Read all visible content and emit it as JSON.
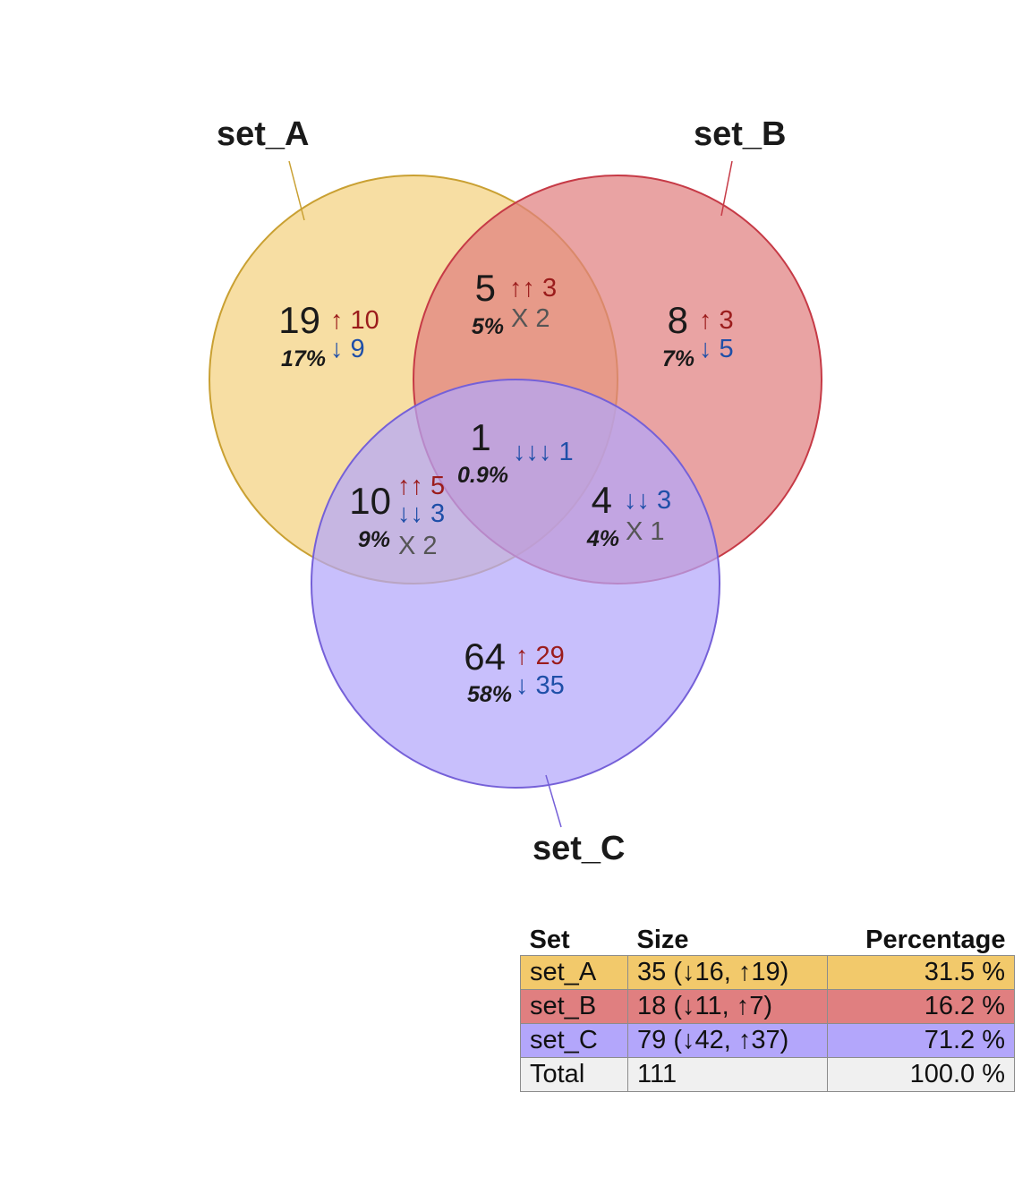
{
  "colors": {
    "set_A": "#f2c96b",
    "set_B": "#e07f80",
    "set_C": "#b3a6fb",
    "total": "#f0f0f0",
    "up": "#9b1c1c",
    "down": "#1f4fa8",
    "mixed": "#555555"
  },
  "sets": [
    {
      "id": "A",
      "name": "set_A",
      "color": "#f2c96b",
      "stroke": "#c9a032"
    },
    {
      "id": "B",
      "name": "set_B",
      "color": "#e07f80",
      "stroke": "#c63a46"
    },
    {
      "id": "C",
      "name": "set_C",
      "color": "#b3a6fb",
      "stroke": "#7560d8"
    }
  ],
  "regions": {
    "A_only": {
      "count": "19",
      "pct": "17%",
      "up": "↑ 10",
      "down": "↓ 9"
    },
    "B_only": {
      "count": "8",
      "pct": "7%",
      "up": "↑ 3",
      "down": "↓ 5"
    },
    "C_only": {
      "count": "64",
      "pct": "58%",
      "up": "↑ 29",
      "down": "↓ 35"
    },
    "AB": {
      "count": "5",
      "pct": "5%",
      "up": "↑↑ 3",
      "mixed": "X 2"
    },
    "AC": {
      "count": "10",
      "pct": "9%",
      "up": "↑↑ 5",
      "down": "↓↓ 3",
      "mixed": "X 2"
    },
    "BC": {
      "count": "4",
      "pct": "4%",
      "down": "↓↓ 3",
      "mixed": "X 1"
    },
    "ABC": {
      "count": "1",
      "pct": "0.9%",
      "down": "↓↓↓ 1"
    }
  },
  "table": {
    "headers": [
      "Set",
      "Size",
      "Percentage"
    ],
    "rows": [
      {
        "set": "set_A",
        "size": "35 (↓16, ↑19)",
        "pct": "31.5 %",
        "color": "#f2c96b"
      },
      {
        "set": "set_B",
        "size": "18 (↓11, ↑7)",
        "pct": "16.2 %",
        "color": "#e07f80"
      },
      {
        "set": "set_C",
        "size": "79 (↓42, ↑37)",
        "pct": "71.2 %",
        "color": "#b3a6fb"
      },
      {
        "set": "Total",
        "size": "111",
        "pct": "100.0 %",
        "color": "#f0f0f0"
      }
    ]
  }
}
